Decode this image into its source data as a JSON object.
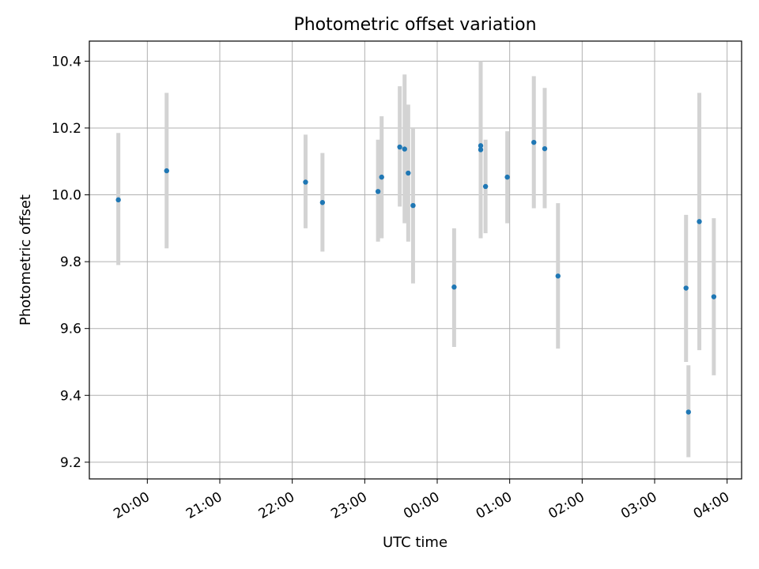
{
  "chart_data": {
    "type": "scatter",
    "title": "Photometric offset variation",
    "xlabel": "UTC time",
    "ylabel": "Photometric offset",
    "x_axis_kind": "time (hh:mm)",
    "xlim": [
      "19:12",
      "04:12"
    ],
    "ylim": [
      9.15,
      10.46
    ],
    "grid": true,
    "x_ticks": [
      "20:00",
      "21:00",
      "22:00",
      "23:00",
      "00:00",
      "01:00",
      "02:00",
      "03:00",
      "04:00"
    ],
    "y_ticks": [
      "9.2",
      "9.4",
      "9.6",
      "9.8",
      "10.0",
      "10.2",
      "10.4"
    ],
    "marker_color": "#1f77b4",
    "errorbar_color": "#d3d3d3",
    "points": [
      {
        "time": "19:36",
        "y": 9.985,
        "ylow": 9.79,
        "yhigh": 10.185
      },
      {
        "time": "20:16",
        "y": 10.072,
        "ylow": 9.84,
        "yhigh": 10.305
      },
      {
        "time": "22:11",
        "y": 10.038,
        "ylow": 9.9,
        "yhigh": 10.18
      },
      {
        "time": "22:25",
        "y": 9.977,
        "ylow": 9.83,
        "yhigh": 10.125
      },
      {
        "time": "23:11",
        "y": 10.01,
        "ylow": 9.86,
        "yhigh": 10.165
      },
      {
        "time": "23:14",
        "y": 10.053,
        "ylow": 9.87,
        "yhigh": 10.235
      },
      {
        "time": "23:29",
        "y": 10.143,
        "ylow": 9.965,
        "yhigh": 10.325
      },
      {
        "time": "23:33",
        "y": 10.137,
        "ylow": 9.915,
        "yhigh": 10.36
      },
      {
        "time": "23:36",
        "y": 10.065,
        "ylow": 9.86,
        "yhigh": 10.27
      },
      {
        "time": "23:40",
        "y": 9.968,
        "ylow": 9.735,
        "yhigh": 10.2
      },
      {
        "time": "00:14",
        "y": 9.724,
        "ylow": 9.545,
        "yhigh": 9.9
      },
      {
        "time": "00:36",
        "y": 10.147,
        "ylow": 9.9,
        "yhigh": 10.4
      },
      {
        "time": "00:36",
        "y": 10.135,
        "ylow": 9.87,
        "yhigh": 10.36
      },
      {
        "time": "00:40",
        "y": 10.025,
        "ylow": 9.885,
        "yhigh": 10.165
      },
      {
        "time": "00:58",
        "y": 10.053,
        "ylow": 9.915,
        "yhigh": 10.19
      },
      {
        "time": "01:20",
        "y": 10.157,
        "ylow": 9.96,
        "yhigh": 10.355
      },
      {
        "time": "01:29",
        "y": 10.138,
        "ylow": 9.96,
        "yhigh": 10.32
      },
      {
        "time": "01:40",
        "y": 9.757,
        "ylow": 9.54,
        "yhigh": 9.975
      },
      {
        "time": "03:26",
        "y": 9.721,
        "ylow": 9.5,
        "yhigh": 9.94
      },
      {
        "time": "03:28",
        "y": 9.35,
        "ylow": 9.215,
        "yhigh": 9.49
      },
      {
        "time": "03:37",
        "y": 9.92,
        "ylow": 9.535,
        "yhigh": 10.305
      },
      {
        "time": "03:49",
        "y": 9.695,
        "ylow": 9.46,
        "yhigh": 9.93
      }
    ]
  }
}
